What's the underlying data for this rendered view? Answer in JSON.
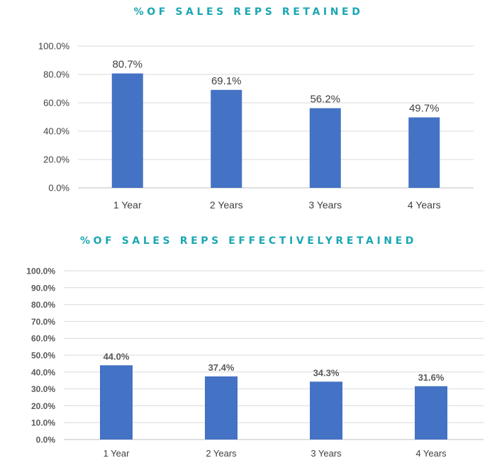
{
  "chart_data": [
    {
      "type": "bar",
      "title": "%OF SALES REPS RETAINED",
      "categories": [
        "1 Year",
        "2 Years",
        "3 Years",
        "4 Years"
      ],
      "values": [
        80.7,
        69.1,
        56.2,
        49.7
      ],
      "data_labels": [
        "80.7%",
        "69.1%",
        "56.2%",
        "49.7%"
      ],
      "yticks": [
        0,
        20,
        40,
        60,
        80,
        100
      ],
      "ytick_labels": [
        "0.0%",
        "20.0%",
        "40.0%",
        "60.0%",
        "80.0%",
        "100.0%"
      ],
      "ylim": [
        0,
        100
      ],
      "grid": true,
      "bar_color": "#4472c4",
      "title_color": "#1aa7b3"
    },
    {
      "type": "bar",
      "title": "%OF SALES REPS EFFECTIVELYRETAINED",
      "categories": [
        "1 Year",
        "2 Years",
        "3 Years",
        "4 Years"
      ],
      "values": [
        44.0,
        37.4,
        34.3,
        31.6
      ],
      "data_labels": [
        "44.0%",
        "37.4%",
        "34.3%",
        "31.6%"
      ],
      "yticks": [
        0,
        10,
        20,
        30,
        40,
        50,
        60,
        70,
        80,
        90,
        100
      ],
      "ytick_labels": [
        "0.0%",
        "10.0%",
        "20.0%",
        "30.0%",
        "40.0%",
        "50.0%",
        "60.0%",
        "70.0%",
        "80.0%",
        "90.0%",
        "100.0%"
      ],
      "ylim": [
        0,
        100
      ],
      "grid": true,
      "bar_color": "#4472c4",
      "title_color": "#1aa7b3"
    }
  ]
}
